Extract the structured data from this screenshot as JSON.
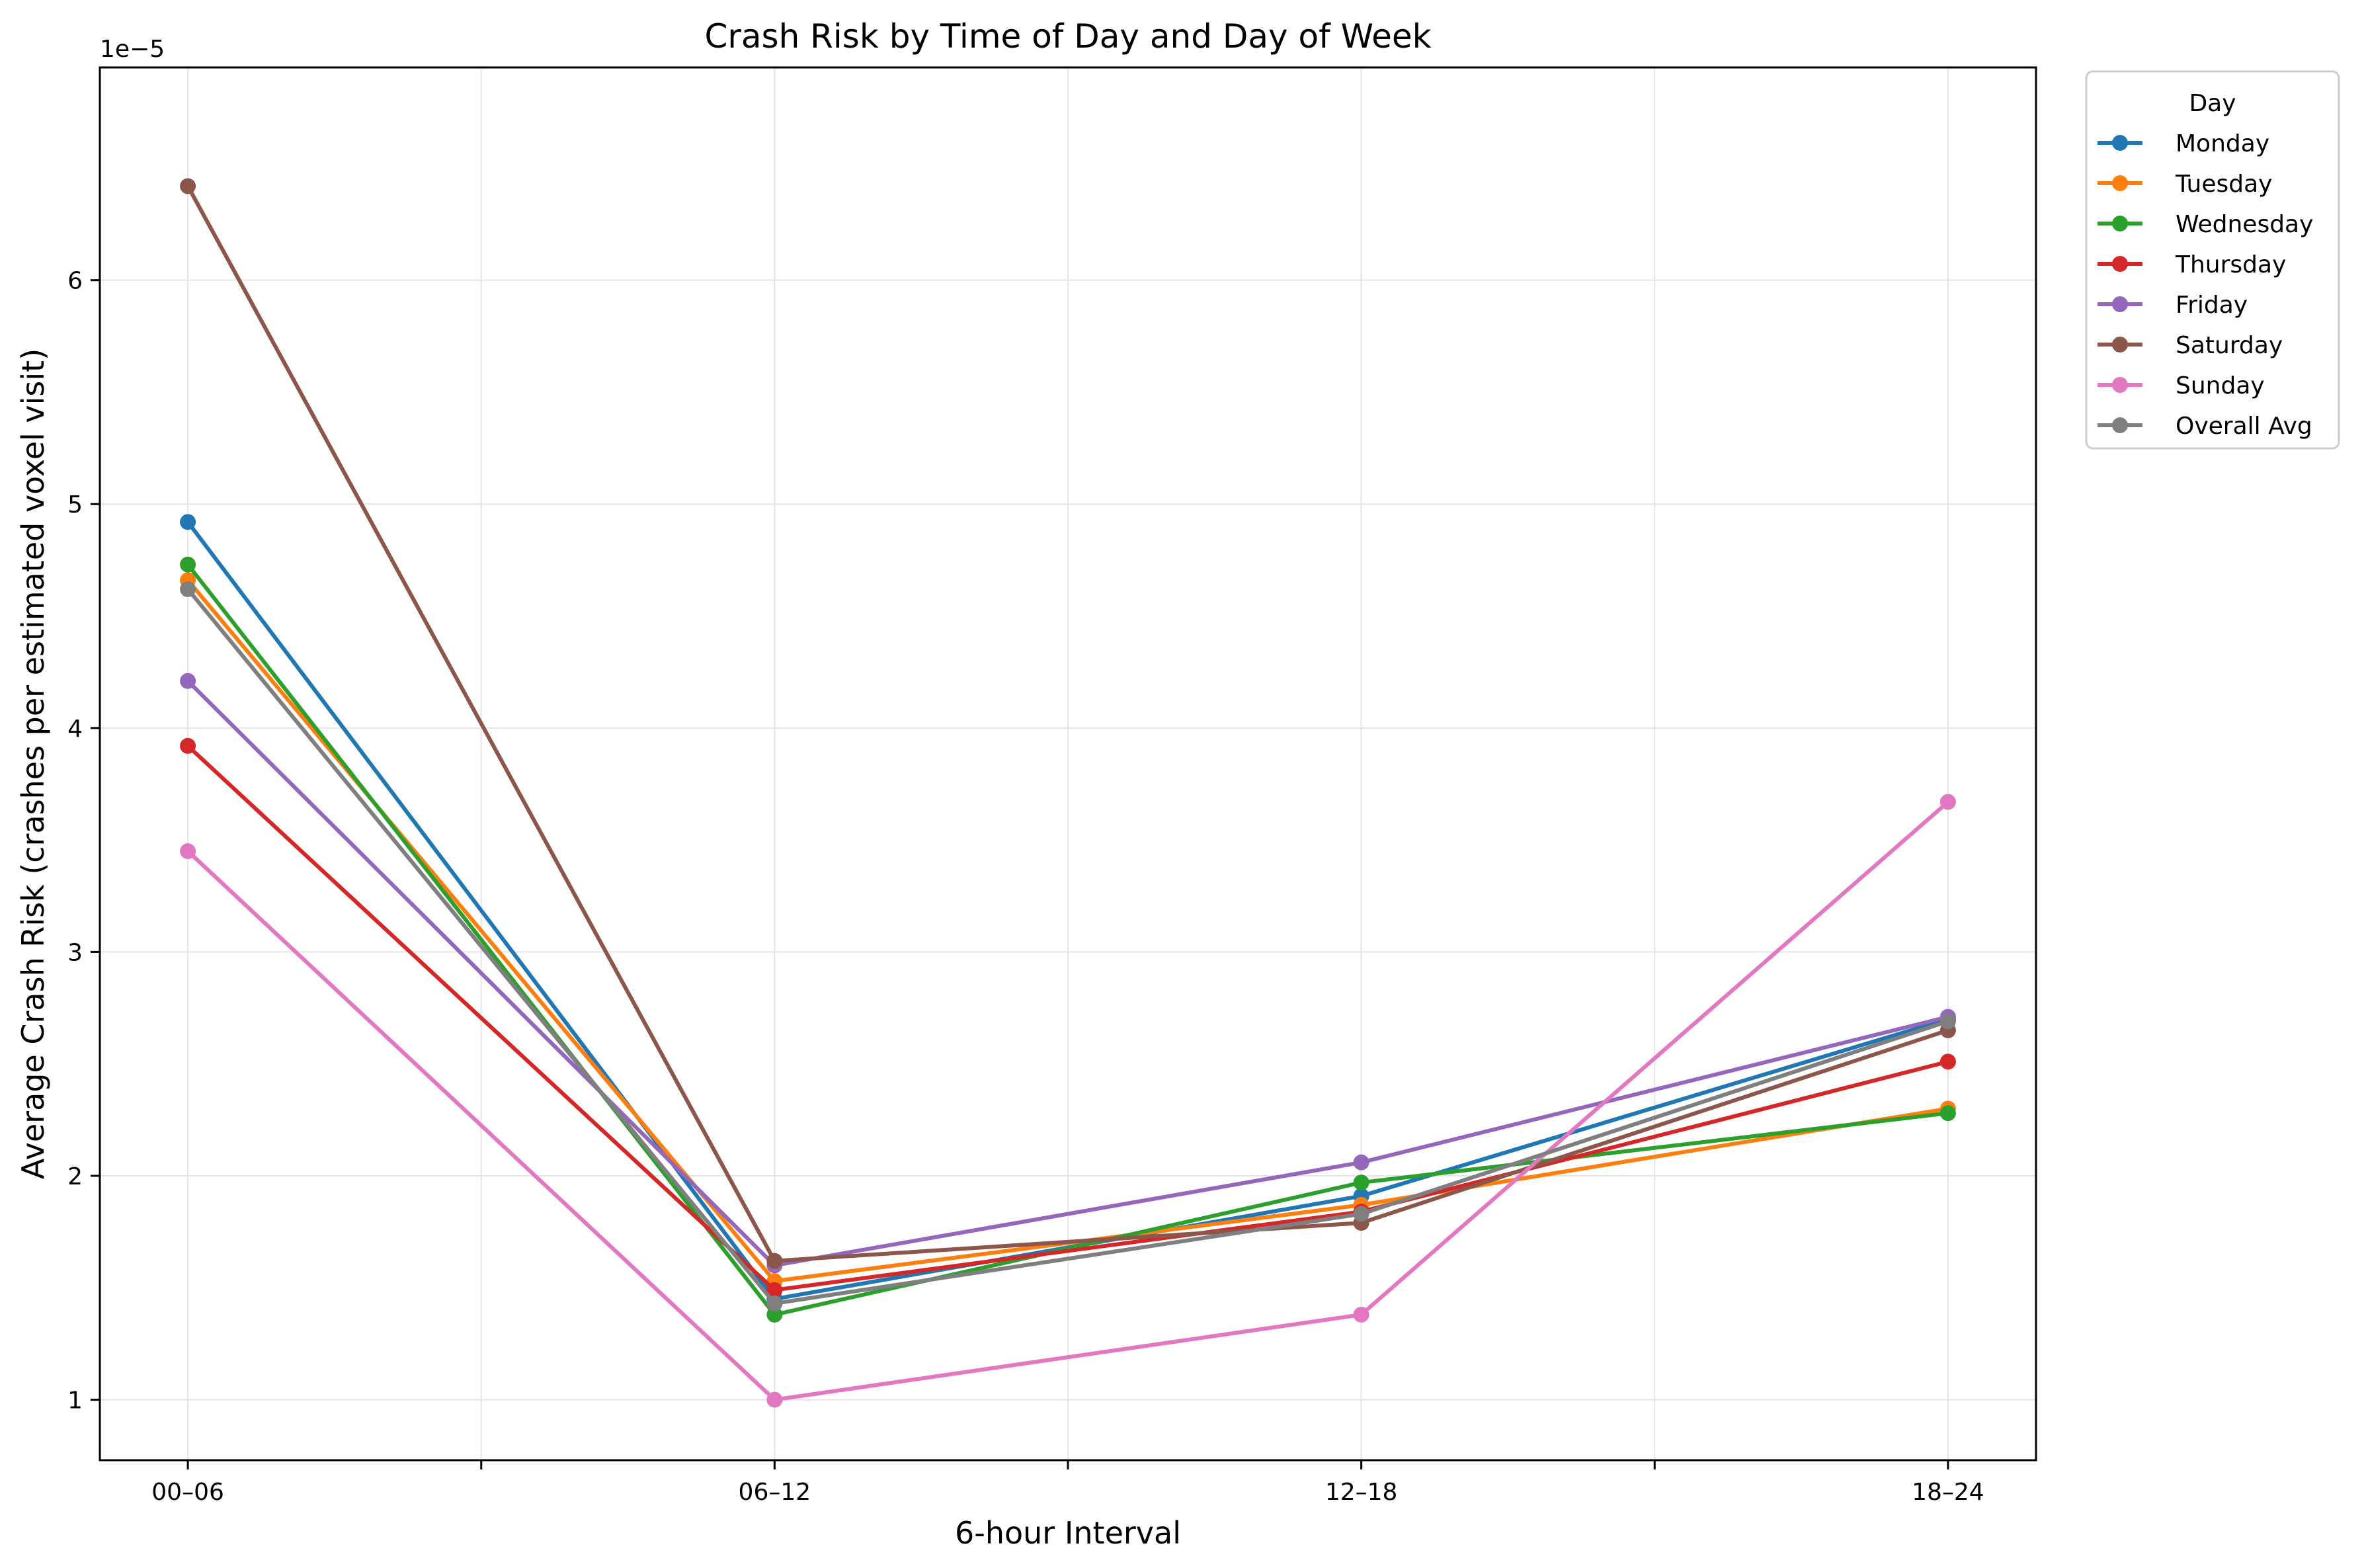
{
  "chart_data": {
    "type": "line",
    "title": "Crash Risk by Time of Day and Day of Week",
    "xlabel": "6-hour Interval",
    "ylabel": "Average Crash Risk (crashes per estimated voxel visit)",
    "y_offset_label": "1e−5",
    "categories": [
      "00–06",
      "06–12",
      "12–18",
      "18–24"
    ],
    "xlim": [
      -0.15,
      3.15
    ],
    "ylim": [
      0.73,
      6.95
    ],
    "y_ticks": [
      1,
      2,
      3,
      4,
      5,
      6
    ],
    "y_unit_scale": 1e-05,
    "grid": true,
    "legend": {
      "title": "Day",
      "placement": "outside-top-right"
    },
    "series": [
      {
        "name": "Monday",
        "color": "#1f77b4",
        "values": [
          4.92,
          1.45,
          1.91,
          2.7
        ]
      },
      {
        "name": "Tuesday",
        "color": "#ff7f0e",
        "values": [
          4.66,
          1.53,
          1.87,
          2.3
        ]
      },
      {
        "name": "Wednesday",
        "color": "#2ca02c",
        "values": [
          4.73,
          1.38,
          1.97,
          2.28
        ]
      },
      {
        "name": "Thursday",
        "color": "#d62728",
        "values": [
          3.92,
          1.49,
          1.84,
          2.51
        ]
      },
      {
        "name": "Friday",
        "color": "#9467bd",
        "values": [
          4.21,
          1.6,
          2.06,
          2.71
        ]
      },
      {
        "name": "Saturday",
        "color": "#8c564b",
        "values": [
          6.42,
          1.62,
          1.79,
          2.65
        ]
      },
      {
        "name": "Sunday",
        "color": "#e377c2",
        "values": [
          3.45,
          1.0,
          1.38,
          3.67
        ]
      },
      {
        "name": "Overall Avg",
        "color": "#7f7f7f",
        "values": [
          4.62,
          1.43,
          1.83,
          2.69
        ]
      }
    ]
  }
}
